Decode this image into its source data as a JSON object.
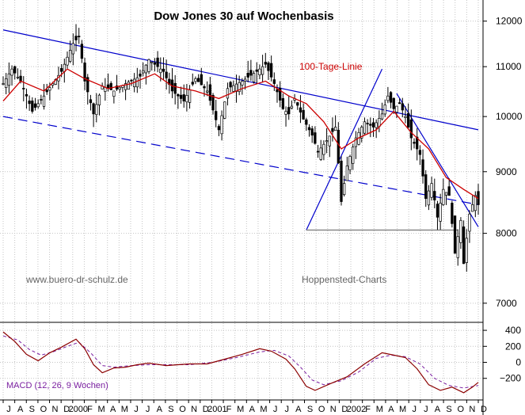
{
  "chart_data": [
    {
      "type": "candlestick",
      "title": "Dow Jones 30 auf Wochenbasis",
      "y_scale": "log",
      "ylim": [
        6800,
        12400
      ],
      "y_ticks": [
        {
          "value": 12000,
          "label": "12000"
        },
        {
          "value": 11000,
          "label": "11000"
        },
        {
          "value": 10000,
          "label": "10000"
        },
        {
          "value": 9000,
          "label": "9000"
        },
        {
          "value": 8000,
          "label": "8000"
        },
        {
          "value": 7000,
          "label": "7000"
        }
      ],
      "x_ticks": [
        "J",
        "A",
        "S",
        "O",
        "N",
        "D",
        "2000",
        "F",
        "M",
        "A",
        "M",
        "J",
        "J",
        "A",
        "S",
        "O",
        "N",
        "D",
        "2001",
        "F",
        "M",
        "A",
        "M",
        "J",
        "J",
        "A",
        "S",
        "O",
        "N",
        "D",
        "2002",
        "F",
        "M",
        "A",
        "M",
        "J",
        "J",
        "A",
        "S",
        "O",
        "N",
        "D"
      ],
      "grid": true,
      "annotations": {
        "ma_label": "100-Tage-Linie",
        "watermark_left": "www.buero-dr-schulz.de",
        "watermark_right": "Hoppenstedt-Charts"
      },
      "colors": {
        "ma": "#cc0000",
        "trend": "#0000cc",
        "support": "#888888",
        "price": "#000000"
      },
      "price_anchors": [
        [
          0,
          10650
        ],
        [
          3,
          10950
        ],
        [
          6,
          10700
        ],
        [
          10,
          10100
        ],
        [
          14,
          10400
        ],
        [
          20,
          10900
        ],
        [
          24,
          11500
        ],
        [
          26,
          11650
        ],
        [
          28,
          10700
        ],
        [
          31,
          10050
        ],
        [
          34,
          10600
        ],
        [
          38,
          10500
        ],
        [
          42,
          10650
        ],
        [
          47,
          10800
        ],
        [
          50,
          11150
        ],
        [
          55,
          10900
        ],
        [
          58,
          10500
        ],
        [
          62,
          10300
        ],
        [
          66,
          10750
        ],
        [
          70,
          10500
        ],
        [
          74,
          9750
        ],
        [
          77,
          10550
        ],
        [
          82,
          10700
        ],
        [
          87,
          10900
        ],
        [
          90,
          11050
        ],
        [
          93,
          10650
        ],
        [
          96,
          10150
        ],
        [
          98,
          10050
        ],
        [
          100,
          10350
        ],
        [
          103,
          9950
        ],
        [
          106,
          9650
        ],
        [
          108,
          9350
        ],
        [
          111,
          9550
        ],
        [
          114,
          9800
        ],
        [
          116,
          8500
        ],
        [
          118,
          9100
        ],
        [
          121,
          9600
        ],
        [
          124,
          9900
        ],
        [
          127,
          9800
        ],
        [
          130,
          10050
        ],
        [
          132,
          10400
        ],
        [
          134,
          10150
        ],
        [
          136,
          10250
        ],
        [
          138,
          10000
        ],
        [
          140,
          9600
        ],
        [
          143,
          9300
        ],
        [
          145,
          8550
        ],
        [
          147,
          8800
        ],
        [
          149,
          8250
        ],
        [
          151,
          8700
        ],
        [
          153,
          8600
        ],
        [
          155,
          7700
        ],
        [
          157,
          8200
        ],
        [
          158,
          7550
        ],
        [
          160,
          8300
        ],
        [
          162,
          8600
        ],
        [
          163,
          8450
        ]
      ],
      "ma_line": [
        [
          0,
          10300
        ],
        [
          6,
          10700
        ],
        [
          14,
          10500
        ],
        [
          22,
          10950
        ],
        [
          28,
          10750
        ],
        [
          36,
          10550
        ],
        [
          44,
          10650
        ],
        [
          52,
          10850
        ],
        [
          58,
          10600
        ],
        [
          66,
          10500
        ],
        [
          74,
          10350
        ],
        [
          82,
          10550
        ],
        [
          90,
          10700
        ],
        [
          98,
          10400
        ],
        [
          104,
          10250
        ],
        [
          110,
          9900
        ],
        [
          116,
          9400
        ],
        [
          122,
          9600
        ],
        [
          128,
          9750
        ],
        [
          134,
          10100
        ],
        [
          140,
          9700
        ],
        [
          146,
          9400
        ],
        [
          152,
          8900
        ],
        [
          158,
          8700
        ],
        [
          163,
          8550
        ]
      ],
      "trend_lines": {
        "upper_channel": [
          [
            0,
            11800
          ],
          [
            163,
            9750
          ]
        ],
        "lower_channel_dashed": [
          [
            0,
            10000
          ],
          [
            163,
            8450
          ]
        ],
        "rising": [
          [
            104,
            8050
          ],
          [
            130,
            10950
          ]
        ],
        "falling": [
          [
            135,
            10450
          ],
          [
            163,
            8100
          ]
        ],
        "support_horizontal": {
          "from": 104,
          "to": 156,
          "value": 8050
        }
      }
    },
    {
      "type": "line",
      "title": "MACD (12, 26, 9 Wochen)",
      "ylim": [
        -450,
        480
      ],
      "y_ticks": [
        {
          "value": 400,
          "label": "400"
        },
        {
          "value": 200,
          "label": "200"
        },
        {
          "value": 0,
          "label": "0"
        },
        {
          "value": -200,
          "label": "−200"
        }
      ],
      "macd": [
        [
          0,
          380
        ],
        [
          4,
          260
        ],
        [
          8,
          100
        ],
        [
          12,
          20
        ],
        [
          16,
          120
        ],
        [
          20,
          190
        ],
        [
          25,
          290
        ],
        [
          28,
          170
        ],
        [
          31,
          -30
        ],
        [
          34,
          -130
        ],
        [
          38,
          -70
        ],
        [
          42,
          -60
        ],
        [
          46,
          -30
        ],
        [
          50,
          -10
        ],
        [
          56,
          -40
        ],
        [
          60,
          -30
        ],
        [
          64,
          -20
        ],
        [
          70,
          -20
        ],
        [
          76,
          40
        ],
        [
          82,
          100
        ],
        [
          88,
          170
        ],
        [
          92,
          140
        ],
        [
          97,
          40
        ],
        [
          100,
          -80
        ],
        [
          104,
          -300
        ],
        [
          107,
          -350
        ],
        [
          112,
          -270
        ],
        [
          118,
          -180
        ],
        [
          124,
          -20
        ],
        [
          130,
          120
        ],
        [
          134,
          90
        ],
        [
          138,
          60
        ],
        [
          142,
          -80
        ],
        [
          146,
          -280
        ],
        [
          150,
          -350
        ],
        [
          154,
          -310
        ],
        [
          158,
          -380
        ],
        [
          161,
          -310
        ],
        [
          163,
          -250
        ]
      ],
      "signal": [
        [
          0,
          330
        ],
        [
          5,
          280
        ],
        [
          9,
          160
        ],
        [
          13,
          90
        ],
        [
          17,
          130
        ],
        [
          22,
          200
        ],
        [
          26,
          250
        ],
        [
          30,
          120
        ],
        [
          34,
          -40
        ],
        [
          38,
          -60
        ],
        [
          44,
          -40
        ],
        [
          50,
          -30
        ],
        [
          56,
          -30
        ],
        [
          64,
          -30
        ],
        [
          72,
          0
        ],
        [
          80,
          60
        ],
        [
          88,
          130
        ],
        [
          93,
          150
        ],
        [
          98,
          80
        ],
        [
          102,
          -60
        ],
        [
          106,
          -220
        ],
        [
          110,
          -280
        ],
        [
          116,
          -230
        ],
        [
          122,
          -120
        ],
        [
          128,
          50
        ],
        [
          133,
          90
        ],
        [
          138,
          70
        ],
        [
          143,
          -20
        ],
        [
          148,
          -200
        ],
        [
          153,
          -290
        ],
        [
          158,
          -320
        ],
        [
          163,
          -290
        ]
      ]
    }
  ]
}
